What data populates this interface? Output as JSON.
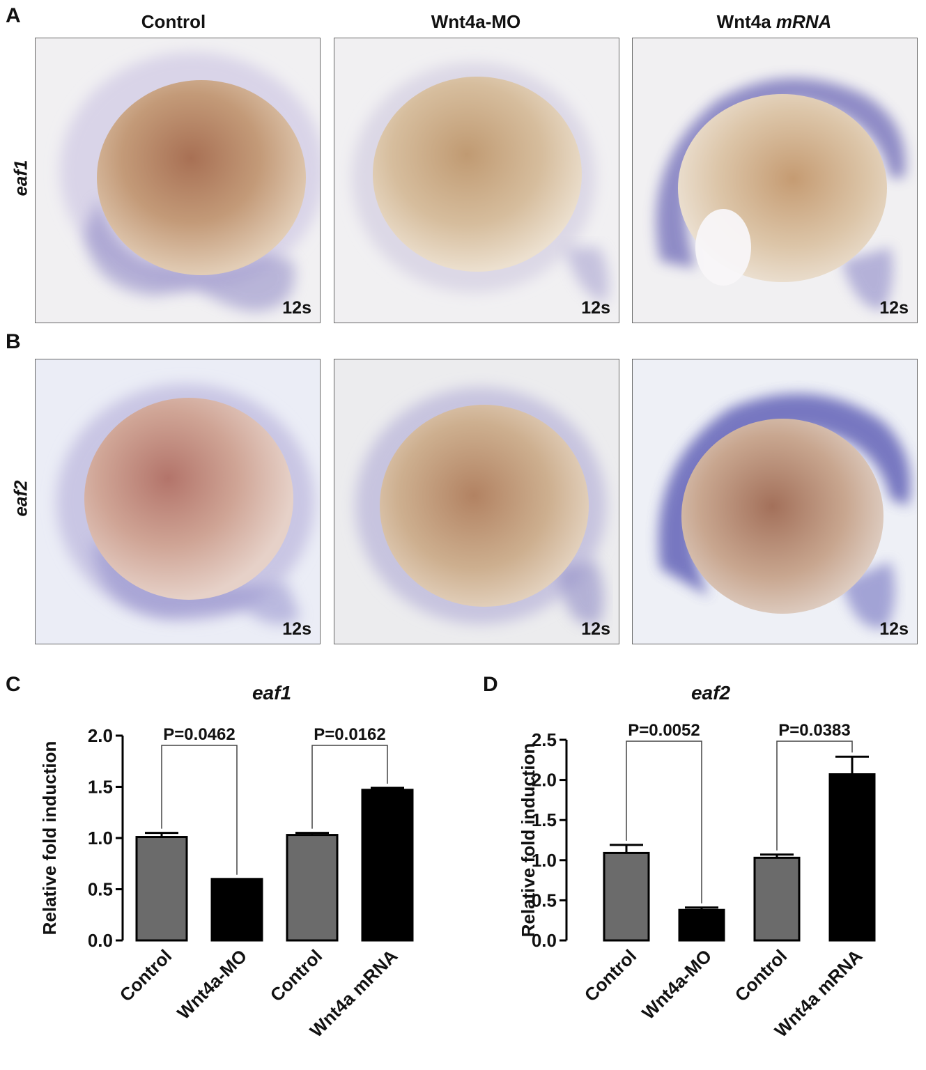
{
  "panel_letters": {
    "a": "A",
    "b": "B",
    "c": "C",
    "d": "D"
  },
  "column_headers": {
    "control": "Control",
    "mo": "Wnt4a-MO",
    "mrna_plain": "Wnt4a ",
    "mrna_italic": "mRNA"
  },
  "row_labels": {
    "a": "eaf1",
    "b": "eaf2"
  },
  "stage_label": "12s",
  "chart_data": [
    {
      "type": "bar",
      "title": "eaf1",
      "ylabel": "Relative fold induction",
      "xlabel": "",
      "ylim": [
        0,
        2.0
      ],
      "yticks": [
        0.0,
        0.5,
        1.0,
        1.5,
        2.0
      ],
      "ytick_labels": [
        "0.0",
        "0.5",
        "1.0",
        "1.5",
        "2.0"
      ],
      "categories": [
        "Control",
        "Wnt4a-MO",
        "Control",
        "Wnt4a mRNA"
      ],
      "values": [
        1.01,
        0.6,
        1.03,
        1.47
      ],
      "errors": [
        0.04,
        0.0,
        0.02,
        0.02
      ],
      "colors": [
        "#6b6b6b",
        "#000000",
        "#6b6b6b",
        "#000000"
      ],
      "comparisons": [
        {
          "from": 0,
          "to": 1,
          "label": "P=0.0462"
        },
        {
          "from": 2,
          "to": 3,
          "label": "P=0.0162"
        }
      ],
      "grid": false,
      "legend": "none"
    },
    {
      "type": "bar",
      "title": "eaf2",
      "ylabel": "Relative fold induction",
      "xlabel": "",
      "ylim": [
        0,
        2.5
      ],
      "yticks": [
        0.0,
        0.5,
        1.0,
        1.5,
        2.0,
        2.5
      ],
      "ytick_labels": [
        "0.0",
        "0.5",
        "1.0",
        "1.5",
        "2.0",
        "2.5"
      ],
      "categories": [
        "Control",
        "Wnt4a-MO",
        "Control",
        "Wnt4a mRNA"
      ],
      "values": [
        1.09,
        0.38,
        1.03,
        2.07
      ],
      "errors": [
        0.1,
        0.03,
        0.04,
        0.22
      ],
      "colors": [
        "#6b6b6b",
        "#000000",
        "#6b6b6b",
        "#000000"
      ],
      "comparisons": [
        {
          "from": 0,
          "to": 1,
          "label": "P=0.0052"
        },
        {
          "from": 2,
          "to": 3,
          "label": "P=0.0383"
        }
      ],
      "grid": false,
      "legend": "none"
    }
  ]
}
